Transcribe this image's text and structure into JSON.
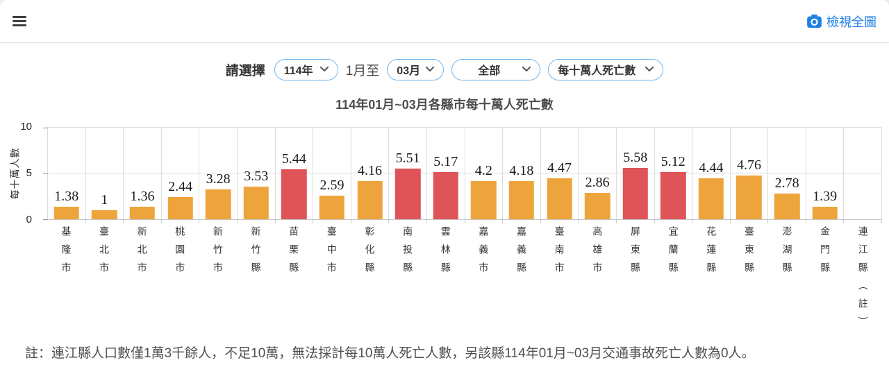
{
  "topbar": {
    "view_full_map_label": "檢視全圖"
  },
  "filters": {
    "label": "請選擇",
    "year_value": "114年",
    "range_text": "1月至",
    "month_value": "03月",
    "area_value": "全部",
    "metric_value": "每十萬人死亡數"
  },
  "colors": {
    "accent_blue": "#1E80E5",
    "pill_border": "#6FB6EE"
  },
  "chart_data": {
    "type": "bar",
    "title": "114年01月~03月各縣市每十萬人死亡數",
    "ylabel": "每十萬人數",
    "xlabel": "",
    "ylim": [
      0,
      10
    ],
    "yticks": [
      0,
      5,
      10
    ],
    "grid": true,
    "legend_position": "none",
    "categories": [
      "基隆市",
      "臺北市",
      "新北市",
      "桃園市",
      "新竹市",
      "新竹縣",
      "苗栗縣",
      "臺中市",
      "彰化縣",
      "南投縣",
      "雲林縣",
      "嘉義市",
      "嘉義縣",
      "臺南市",
      "高雄市",
      "屏東縣",
      "宜蘭縣",
      "花蓮縣",
      "臺東縣",
      "澎湖縣",
      "金門縣",
      "連江縣（註）"
    ],
    "values": [
      1.38,
      1,
      1.36,
      2.44,
      3.28,
      3.53,
      5.44,
      2.59,
      4.16,
      5.51,
      5.17,
      4.2,
      4.18,
      4.47,
      2.86,
      5.58,
      5.12,
      4.44,
      4.76,
      2.78,
      1.39,
      null
    ],
    "value_labels": [
      "1.38",
      "1",
      "1.36",
      "2.44",
      "3.28",
      "3.53",
      "5.44",
      "2.59",
      "4.16",
      "5.51",
      "5.17",
      "4.2",
      "4.18",
      "4.47",
      "2.86",
      "5.58",
      "5.12",
      "4.44",
      "4.76",
      "2.78",
      "1.39",
      ""
    ],
    "bar_color_normal": "#EEA43C",
    "bar_color_high": "#DE5459",
    "high_threshold": 5
  },
  "note": "註：連江縣人口數僅1萬3千餘人，不足10萬，無法採計每10萬人死亡人數，另該縣114年01月~03月交通事故死亡人數為0人。"
}
